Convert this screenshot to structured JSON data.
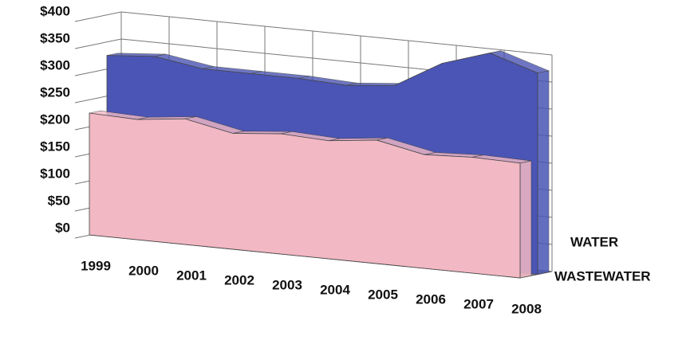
{
  "chart_data": {
    "type": "area3d",
    "categories": [
      "1999",
      "2000",
      "2001",
      "2002",
      "2003",
      "2004",
      "2005",
      "2006",
      "2007",
      "2008"
    ],
    "series": [
      {
        "name": "WATER",
        "color": "#4a55b5",
        "values": [
          325,
          332,
          318,
          318,
          318,
          314,
          322,
          372,
          400,
          372
        ]
      },
      {
        "name": "WASTEWATER",
        "color": "#f2b8c4",
        "values": [
          225,
          222,
          232,
          214,
          222,
          218,
          228,
          210,
          214,
          212
        ]
      }
    ],
    "ylim": [
      0,
      400
    ],
    "yticks": [
      {
        "value": 0,
        "label": "$0"
      },
      {
        "value": 50,
        "label": "$50"
      },
      {
        "value": 100,
        "label": "$100"
      },
      {
        "value": 150,
        "label": "$150"
      },
      {
        "value": 200,
        "label": "$200"
      },
      {
        "value": 250,
        "label": "$250"
      },
      {
        "value": 300,
        "label": "$300"
      },
      {
        "value": 350,
        "label": "$350"
      },
      {
        "value": 400,
        "label": "$400"
      }
    ],
    "grid": true
  }
}
